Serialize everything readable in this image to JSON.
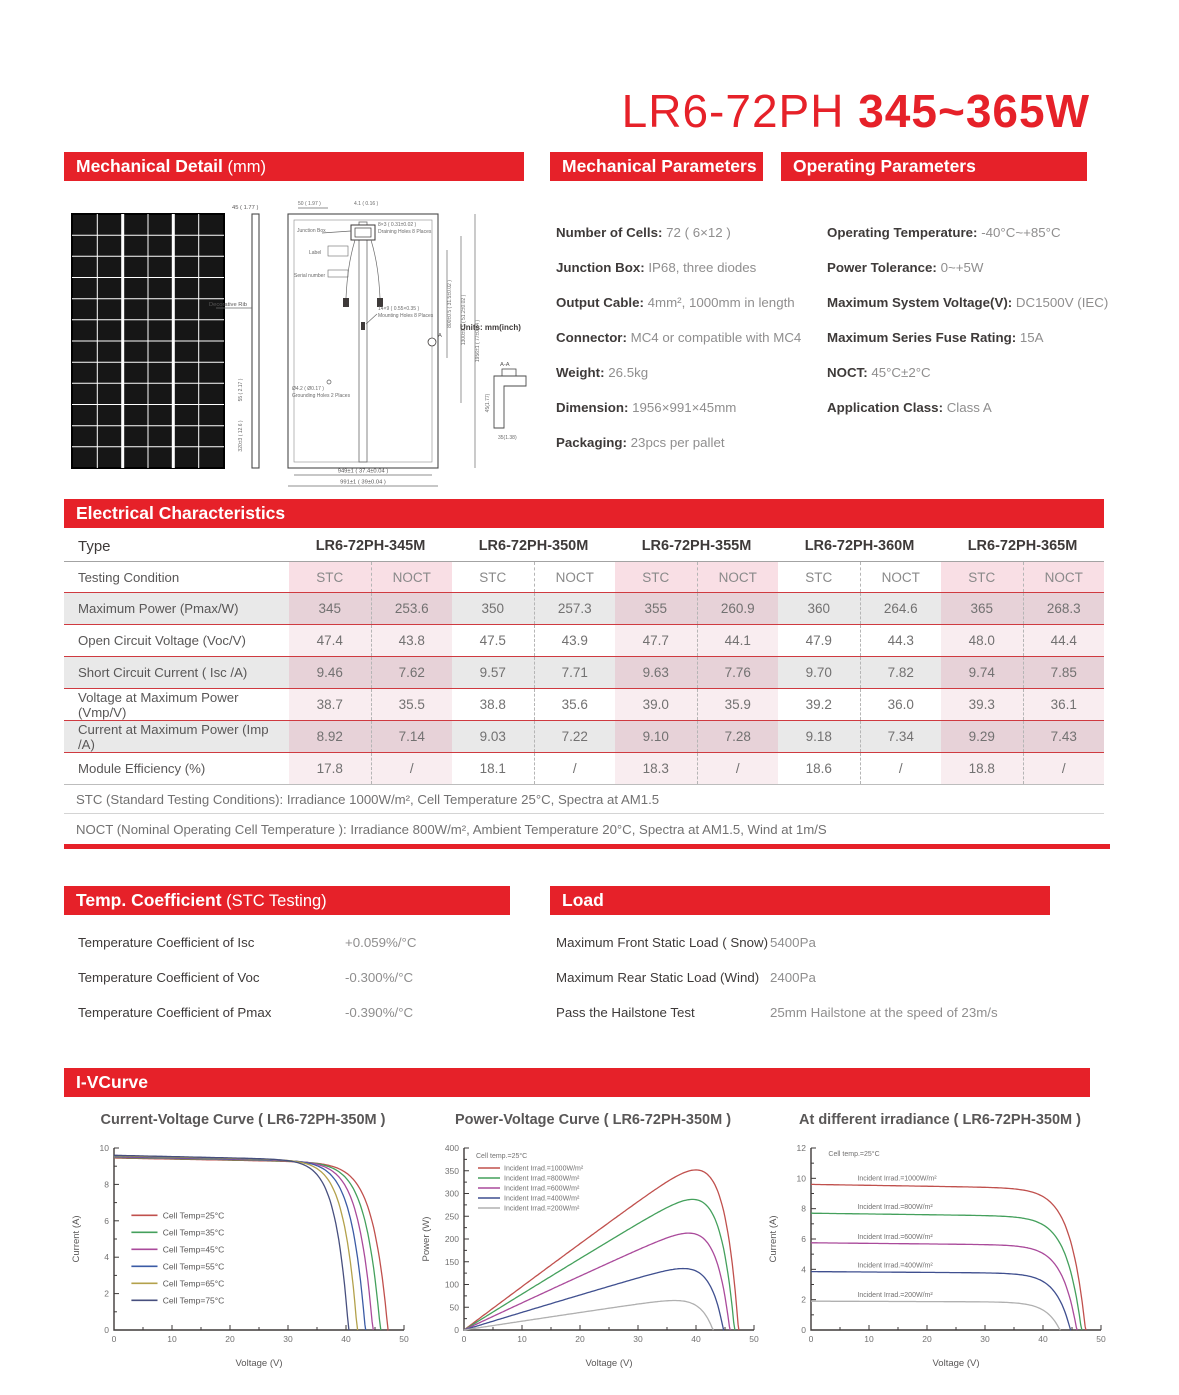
{
  "title": {
    "model": "LR6-72PH",
    "power": "345~365W"
  },
  "colors": {
    "brand_red": "#e62129",
    "row_shade_gray": "#e9e9e9",
    "pink_column_light": "#f9edf0",
    "pink_column_shade": "#e7d2d8",
    "pink_header": "#f9dfe5",
    "body_text": "#3e3a39",
    "value_text": "#8f8e8e"
  },
  "sections": {
    "mechanical_detail": {
      "heading_bold": "Mechanical Detail",
      "heading_light": " (mm)"
    },
    "mechanical_parameters": {
      "heading": "Mechanical Parameters",
      "items": [
        {
          "label": "Number of Cells:",
          "value": "72 ( 6×12 )"
        },
        {
          "label": "Junction Box:",
          "value": "IP68, three diodes"
        },
        {
          "label": "Output Cable:",
          "value": "4mm², 1000mm in length"
        },
        {
          "label": "Connector:",
          "value": "MC4 or compatible with MC4"
        },
        {
          "label": "Weight:",
          "value": "26.5kg"
        },
        {
          "label": "Dimension:",
          "value": "1956×991×45mm"
        },
        {
          "label": "Packaging:",
          "value": "23pcs per pallet"
        }
      ]
    },
    "operating_parameters": {
      "heading": "Operating Parameters",
      "items": [
        {
          "label": "Operating Temperature:",
          "value": "-40°C~+85°C"
        },
        {
          "label": "Power Tolerance:",
          "value": "0~+5W"
        },
        {
          "label": "Maximum System Voltage(V):",
          "value": "DC1500V (IEC)"
        },
        {
          "label": "Maximum Series Fuse Rating:",
          "value": "15A"
        },
        {
          "label": "NOCT:",
          "value": "45°C±2°C"
        },
        {
          "label": "Application Class:",
          "value": "Class A"
        }
      ]
    },
    "electrical": {
      "heading": "Electrical Characteristics",
      "type_label": "Type",
      "testing_condition_label": "Testing Condition",
      "models": [
        "LR6-72PH-345M",
        "LR6-72PH-350M",
        "LR6-72PH-355M",
        "LR6-72PH-360M",
        "LR6-72PH-365M"
      ],
      "condition_headers": [
        "STC",
        "NOCT"
      ],
      "rows": [
        {
          "label": "Maximum Power (Pmax/W)",
          "values": [
            "345",
            "253.6",
            "350",
            "257.3",
            "355",
            "260.9",
            "360",
            "264.6",
            "365",
            "268.3"
          ]
        },
        {
          "label": "Open Circuit Voltage (Voc/V)",
          "values": [
            "47.4",
            "43.8",
            "47.5",
            "43.9",
            "47.7",
            "44.1",
            "47.9",
            "44.3",
            "48.0",
            "44.4"
          ]
        },
        {
          "label": "Short Circuit Current ( Isc /A)",
          "values": [
            "9.46",
            "7.62",
            "9.57",
            "7.71",
            "9.63",
            "7.76",
            "9.70",
            "7.82",
            "9.74",
            "7.85"
          ]
        },
        {
          "label": "Voltage at Maximum Power (Vmp/V)",
          "values": [
            "38.7",
            "35.5",
            "38.8",
            "35.6",
            "39.0",
            "35.9",
            "39.2",
            "36.0",
            "39.3",
            "36.1"
          ]
        },
        {
          "label": "Current at Maximum Power (Imp /A)",
          "values": [
            "8.92",
            "7.14",
            "9.03",
            "7.22",
            "9.10",
            "7.28",
            "9.18",
            "7.34",
            "9.29",
            "7.43"
          ]
        },
        {
          "label": "Module Efficiency (%)",
          "values": [
            "17.8",
            "/",
            "18.1",
            "/",
            "18.3",
            "/",
            "18.6",
            "/",
            "18.8",
            "/"
          ]
        }
      ],
      "notes": [
        "STC (Standard Testing Conditions): Irradiance 1000W/m², Cell Temperature 25°C,  Spectra at AM1.5",
        "NOCT  (Nominal Operating Cell Temperature ): Irradiance 800W/m², Ambient Temperature 20°C,  Spectra at AM1.5,  Wind at 1m/S"
      ]
    },
    "temp_coefficient": {
      "heading_bold": "Temp. Coefficient",
      "heading_light": " (STC Testing)",
      "items": [
        {
          "label": "Temperature Coefficient of Isc",
          "value": "+0.059%/°C"
        },
        {
          "label": "Temperature Coefficient of Voc",
          "value": "-0.300%/°C"
        },
        {
          "label": "Temperature Coefficient of Pmax",
          "value": "-0.390%/°C"
        }
      ]
    },
    "load": {
      "heading": "Load",
      "items": [
        {
          "label": "Maximum Front Static Load ( Snow)",
          "value": "5400Pa"
        },
        {
          "label": "Maximum Rear Static Load (Wind)",
          "value": "2400Pa"
        },
        {
          "label": "Pass the Hailstone Test",
          "value": "25mm Hailstone at the speed of 23m/s"
        }
      ]
    },
    "iv_curve": {
      "heading": "I-VCurve"
    }
  },
  "drawing": {
    "units": "Units:  mm(inch)",
    "frame_45": "45 ( 1.77 )",
    "top_50": "50 ( 1.97 )",
    "top_41": "4.1 ( 0.16 )",
    "junction_box": "Junction Box",
    "label": "Label",
    "serial": "Serial number",
    "decorative_rib": "Decorative Rib",
    "rib_55": "55 ( 2.17 )",
    "rib_320": "320±3 ( 12.6 )",
    "draining1": "8×3 ( 0.31±0.02 )",
    "draining2": "Draining Holes 8 Places",
    "mounting1": "14×9 ( 0.55×0.35 )",
    "mounting2": "Mounting Holes 8 Places",
    "grounding1": "Ø4.2 ( Ø0.17 )",
    "grounding2": "Grounding Holes 2 Places",
    "a_marker": "A",
    "dim_800": "800±0.5 ( 31.5±0.02 )",
    "dim_1300": "1300±0.5 ( 51.2±0.02 )",
    "dim_1956": "1956±1 ( 77±0.04 )",
    "dim_949": "949±1 ( 37.4±0.04 )",
    "dim_991": "991±1 ( 39±0.04 )",
    "aa": "A-A",
    "aa_45": "45(1.77)",
    "aa_35": "35(1.38)"
  },
  "chart_data": [
    {
      "type": "line",
      "subtype": "iv",
      "title": "Current-Voltage Curve ( LR6-72PH-350M )",
      "xlabel": "Voltage (V)",
      "ylabel": "Current (A)",
      "xlim": [
        0,
        50
      ],
      "ylim": [
        0,
        10
      ],
      "xtick_step": 10,
      "ytick_step": 2,
      "grid": false,
      "legend": "mid-left",
      "series": [
        {
          "name": "Cell Temp=25°C",
          "color": "#c0504d",
          "isc": 9.45,
          "voc": 47.3
        },
        {
          "name": "Cell Temp=35°C",
          "color": "#44a05c",
          "isc": 9.48,
          "voc": 46.0
        },
        {
          "name": "Cell Temp=45°C",
          "color": "#aa4a9b",
          "isc": 9.51,
          "voc": 44.7
        },
        {
          "name": "Cell Temp=55°C",
          "color": "#3b5ba5",
          "isc": 9.54,
          "voc": 43.4
        },
        {
          "name": "Cell Temp=65°C",
          "color": "#b3a14b",
          "isc": 9.57,
          "voc": 42.0
        },
        {
          "name": "Cell Temp=75°C",
          "color": "#474f7e",
          "isc": 9.6,
          "voc": 40.5
        }
      ]
    },
    {
      "type": "line",
      "subtype": "pv",
      "title": "Power-Voltage Curve ( LR6-72PH-350M )",
      "xlabel": "Voltage (V)",
      "ylabel": "Power (W)",
      "xlim": [
        0,
        50
      ],
      "ylim": [
        0,
        400
      ],
      "xtick_step": 10,
      "ytick_step": 50,
      "grid": false,
      "legend": "top-left",
      "legend_title": "Cell temp.=25°C",
      "series": [
        {
          "name": "Incident Irrad.=1000W/m²",
          "color": "#c0504d",
          "isc": 9.6,
          "voc": 47.4
        },
        {
          "name": "Incident Irrad.=800W/m²",
          "color": "#44a05c",
          "isc": 7.95,
          "voc": 46.7
        },
        {
          "name": "Incident Irrad.=600W/m²",
          "color": "#aa4a9b",
          "isc": 6.0,
          "voc": 45.9
        },
        {
          "name": "Incident Irrad.=400W/m²",
          "color": "#3f4f8f",
          "isc": 3.9,
          "voc": 44.8
        },
        {
          "name": "Incident Irrad.=200W/m²",
          "color": "#b0b0b0",
          "isc": 1.95,
          "voc": 43.0
        }
      ]
    },
    {
      "type": "line",
      "subtype": "iv",
      "title": "At different irradiance ( LR6-72PH-350M )",
      "xlabel": "Voltage (V)",
      "ylabel": "Current (A)",
      "xlim": [
        0,
        50
      ],
      "ylim": [
        0,
        12
      ],
      "xtick_step": 10,
      "ytick_step": 2,
      "grid": false,
      "legend": "inline",
      "legend_title": "Cell temp.=25°C",
      "series": [
        {
          "name": "Incident Irrad.=1000W/m²",
          "color": "#c0504d",
          "isc": 9.6,
          "voc": 47.4
        },
        {
          "name": "Incident Irrad.=800W/m²",
          "color": "#44a05c",
          "isc": 7.7,
          "voc": 46.7
        },
        {
          "name": "Incident Irrad.=600W/m²",
          "color": "#aa4a9b",
          "isc": 5.75,
          "voc": 45.9
        },
        {
          "name": "Incident Irrad.=400W/m²",
          "color": "#3f4f8f",
          "isc": 3.85,
          "voc": 44.8
        },
        {
          "name": "Incident Irrad.=200W/m²",
          "color": "#b0b0b0",
          "isc": 1.9,
          "voc": 43.0
        }
      ]
    }
  ]
}
